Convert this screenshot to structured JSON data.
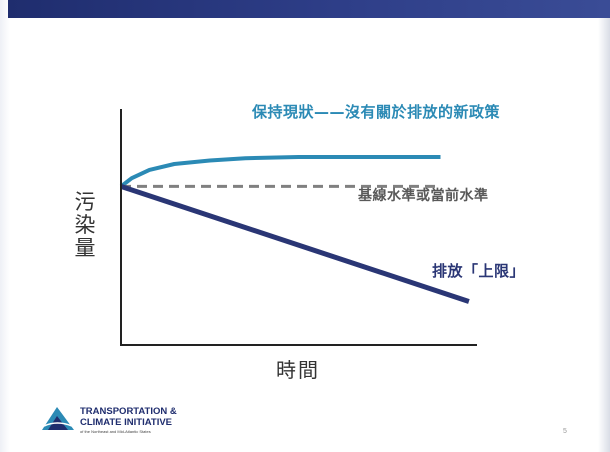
{
  "slide": {
    "page_number": "5",
    "logo": {
      "line1": "TRANSPORTATION &",
      "line2": "CLIMATE INITIATIVE",
      "tagline": "of the Northeast and Mid-Atlantic States"
    }
  },
  "colors": {
    "status_quo": "#2b8ab5",
    "baseline": "#808080",
    "cap": "#2a3675",
    "axis": "#222222",
    "header_bar": "#1f2d6e"
  },
  "chart_data": {
    "type": "line",
    "title": "",
    "xlabel": "時間",
    "ylabel": "污染量",
    "axis_ticks": false,
    "grid": false,
    "xlim": [
      0,
      1
    ],
    "ylim": [
      0,
      1
    ],
    "series": [
      {
        "name": "保持現狀——沒有關於排放的新政策",
        "style": "solid",
        "x": [
          0,
          0.03,
          0.08,
          0.15,
          0.25,
          0.35,
          0.5,
          0.65,
          0.8,
          0.9
        ],
        "y": [
          0.675,
          0.71,
          0.745,
          0.77,
          0.785,
          0.795,
          0.8,
          0.8,
          0.8,
          0.8
        ]
      },
      {
        "name": "基線水準或當前水準",
        "style": "dashed",
        "x": [
          0,
          0.9
        ],
        "y": [
          0.675,
          0.675
        ]
      },
      {
        "name": "排放「上限」",
        "style": "solid",
        "x": [
          0,
          0.98
        ],
        "y": [
          0.675,
          0.185
        ]
      }
    ]
  }
}
